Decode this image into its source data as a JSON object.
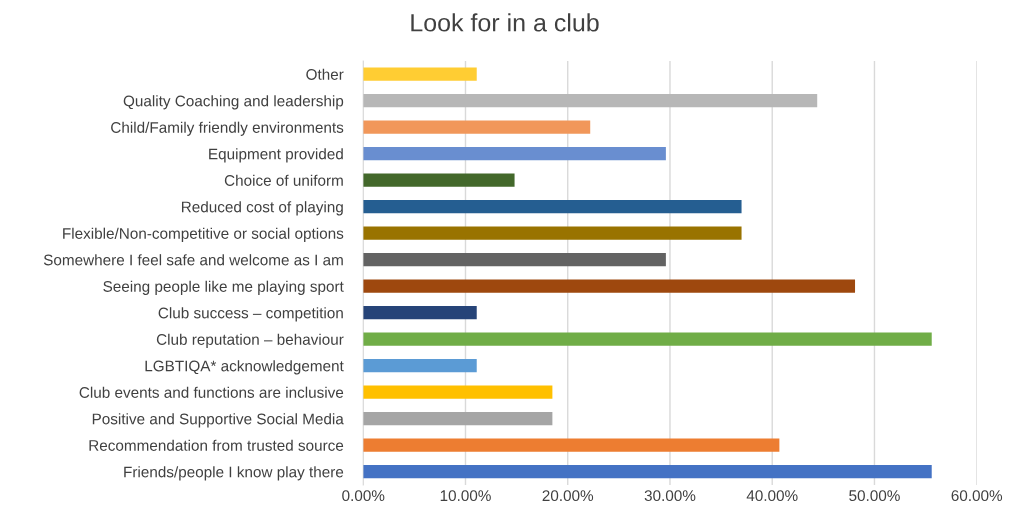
{
  "chart_data": {
    "type": "bar",
    "orientation": "horizontal",
    "title": "Look for in a club",
    "categories": [
      "Other",
      "Quality Coaching and leadership",
      "Child/Family friendly environments",
      "Equipment provided",
      "Choice of uniform",
      "Reduced cost of playing",
      "Flexible/Non-competitive or social options",
      "Somewhere I feel safe and welcome as I am",
      "Seeing people like me playing sport",
      "Club success – competition",
      "Club reputation – behaviour",
      "LGBTIQA* acknowledgement",
      "Club events and functions are inclusive",
      "Positive and Supportive Social Media",
      "Recommendation from trusted source",
      "Friends/people I know play there"
    ],
    "values": [
      11.1,
      44.4,
      22.2,
      29.6,
      14.8,
      37.0,
      37.0,
      29.6,
      48.1,
      11.1,
      55.6,
      11.1,
      18.5,
      18.5,
      40.7,
      55.6
    ],
    "colors": [
      "#ffcd33",
      "#b7b7b7",
      "#f1975a",
      "#698ed0",
      "#43682b",
      "#255e91",
      "#997300",
      "#636363",
      "#9e480e",
      "#264478",
      "#70ad47",
      "#5b9bd5",
      "#ffc000",
      "#a5a5a5",
      "#ed7d31",
      "#4472c4"
    ],
    "xlim": [
      0,
      60
    ],
    "xticks": [
      {
        "value": 0,
        "label": "0.00%"
      },
      {
        "value": 10,
        "label": "10.00%"
      },
      {
        "value": 20,
        "label": "20.00%"
      },
      {
        "value": 30,
        "label": "30.00%"
      },
      {
        "value": 40,
        "label": "40.00%"
      },
      {
        "value": 50,
        "label": "50.00%"
      },
      {
        "value": 60,
        "label": "60.00%"
      }
    ],
    "grid": "x",
    "legend": false
  }
}
